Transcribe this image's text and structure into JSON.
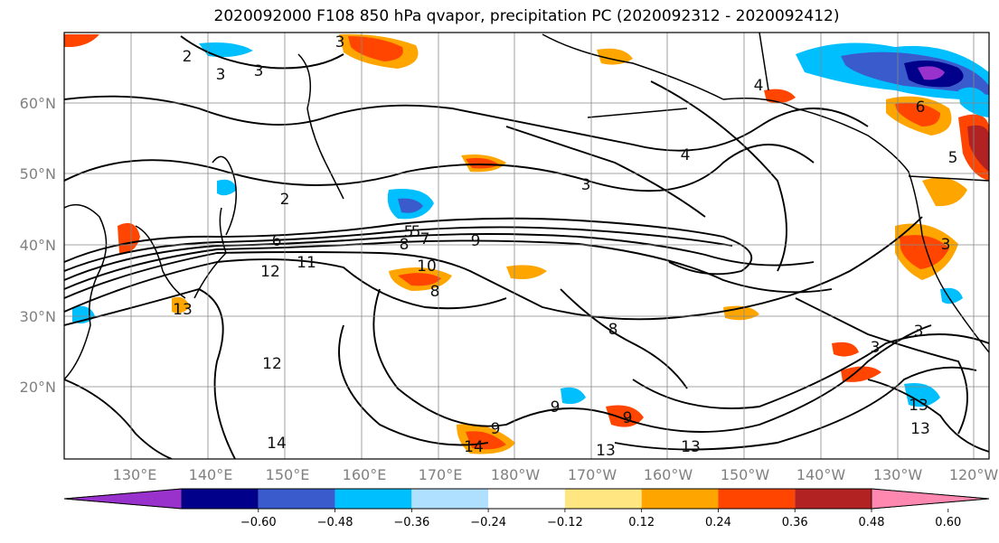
{
  "title": "2020092000 F108 850 hPa qvapor, precipitation PC (2020092312 - 2020092412)",
  "lat_labels": [
    "60°N",
    "50°N",
    "40°N",
    "30°N",
    "20°N"
  ],
  "lon_labels": [
    "130°E",
    "140°E",
    "150°E",
    "160°E",
    "170°E",
    "180°W",
    "170°W",
    "160°W",
    "150°W",
    "140°W",
    "130°W",
    "120°W"
  ],
  "colorbar": {
    "colors": [
      "#9932cc",
      "#00008b",
      "#3a5bcc",
      "#00bfff",
      "#b0e0ff",
      "#ffffff",
      "#ffe680",
      "#ffa500",
      "#ff4500",
      "#b22222",
      "#ff88b0"
    ],
    "tick_labels": [
      "−0.60",
      "−0.48",
      "−0.36",
      "−0.24",
      "−0.12",
      "0.12",
      "0.24",
      "0.36",
      "0.48",
      "0.60"
    ]
  },
  "contour_labels": [
    "2",
    "3",
    "3",
    "2",
    "3",
    "4",
    "4",
    "6",
    "5",
    "5",
    "6",
    "7",
    "8",
    "9",
    "11",
    "12",
    "10",
    "8",
    "3",
    "13",
    "12",
    "8",
    "9",
    "9",
    "13",
    "13",
    "13",
    "3",
    "13",
    "3",
    "14",
    "14",
    "9",
    "5",
    "3"
  ]
}
